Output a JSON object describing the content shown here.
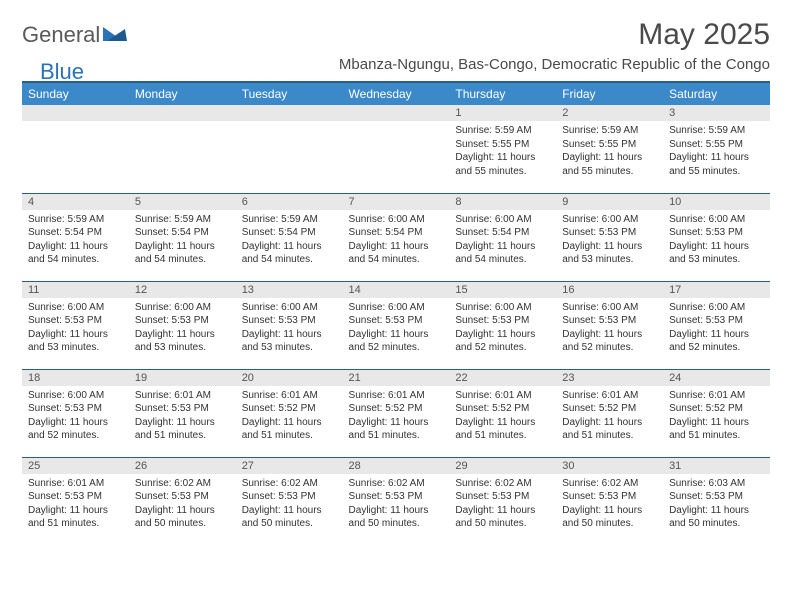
{
  "logo": {
    "part1": "General",
    "part2": "Blue"
  },
  "title": "May 2025",
  "location": "Mbanza-Ngungu, Bas-Congo, Democratic Republic of the Congo",
  "colors": {
    "header_bg": "#3b89c9",
    "header_text": "#ffffff",
    "row_divider": "#2a5d8a",
    "daynum_bg": "#e8e8e8",
    "logo_gray": "#5a5a5a",
    "logo_blue": "#2a73b8",
    "text": "#333333"
  },
  "weekdays": [
    "Sunday",
    "Monday",
    "Tuesday",
    "Wednesday",
    "Thursday",
    "Friday",
    "Saturday"
  ],
  "weeks": [
    [
      {
        "day": "",
        "lines": []
      },
      {
        "day": "",
        "lines": []
      },
      {
        "day": "",
        "lines": []
      },
      {
        "day": "",
        "lines": []
      },
      {
        "day": "1",
        "lines": [
          "Sunrise: 5:59 AM",
          "Sunset: 5:55 PM",
          "Daylight: 11 hours and 55 minutes."
        ]
      },
      {
        "day": "2",
        "lines": [
          "Sunrise: 5:59 AM",
          "Sunset: 5:55 PM",
          "Daylight: 11 hours and 55 minutes."
        ]
      },
      {
        "day": "3",
        "lines": [
          "Sunrise: 5:59 AM",
          "Sunset: 5:55 PM",
          "Daylight: 11 hours and 55 minutes."
        ]
      }
    ],
    [
      {
        "day": "4",
        "lines": [
          "Sunrise: 5:59 AM",
          "Sunset: 5:54 PM",
          "Daylight: 11 hours and 54 minutes."
        ]
      },
      {
        "day": "5",
        "lines": [
          "Sunrise: 5:59 AM",
          "Sunset: 5:54 PM",
          "Daylight: 11 hours and 54 minutes."
        ]
      },
      {
        "day": "6",
        "lines": [
          "Sunrise: 5:59 AM",
          "Sunset: 5:54 PM",
          "Daylight: 11 hours and 54 minutes."
        ]
      },
      {
        "day": "7",
        "lines": [
          "Sunrise: 6:00 AM",
          "Sunset: 5:54 PM",
          "Daylight: 11 hours and 54 minutes."
        ]
      },
      {
        "day": "8",
        "lines": [
          "Sunrise: 6:00 AM",
          "Sunset: 5:54 PM",
          "Daylight: 11 hours and 54 minutes."
        ]
      },
      {
        "day": "9",
        "lines": [
          "Sunrise: 6:00 AM",
          "Sunset: 5:53 PM",
          "Daylight: 11 hours and 53 minutes."
        ]
      },
      {
        "day": "10",
        "lines": [
          "Sunrise: 6:00 AM",
          "Sunset: 5:53 PM",
          "Daylight: 11 hours and 53 minutes."
        ]
      }
    ],
    [
      {
        "day": "11",
        "lines": [
          "Sunrise: 6:00 AM",
          "Sunset: 5:53 PM",
          "Daylight: 11 hours and 53 minutes."
        ]
      },
      {
        "day": "12",
        "lines": [
          "Sunrise: 6:00 AM",
          "Sunset: 5:53 PM",
          "Daylight: 11 hours and 53 minutes."
        ]
      },
      {
        "day": "13",
        "lines": [
          "Sunrise: 6:00 AM",
          "Sunset: 5:53 PM",
          "Daylight: 11 hours and 53 minutes."
        ]
      },
      {
        "day": "14",
        "lines": [
          "Sunrise: 6:00 AM",
          "Sunset: 5:53 PM",
          "Daylight: 11 hours and 52 minutes."
        ]
      },
      {
        "day": "15",
        "lines": [
          "Sunrise: 6:00 AM",
          "Sunset: 5:53 PM",
          "Daylight: 11 hours and 52 minutes."
        ]
      },
      {
        "day": "16",
        "lines": [
          "Sunrise: 6:00 AM",
          "Sunset: 5:53 PM",
          "Daylight: 11 hours and 52 minutes."
        ]
      },
      {
        "day": "17",
        "lines": [
          "Sunrise: 6:00 AM",
          "Sunset: 5:53 PM",
          "Daylight: 11 hours and 52 minutes."
        ]
      }
    ],
    [
      {
        "day": "18",
        "lines": [
          "Sunrise: 6:00 AM",
          "Sunset: 5:53 PM",
          "Daylight: 11 hours and 52 minutes."
        ]
      },
      {
        "day": "19",
        "lines": [
          "Sunrise: 6:01 AM",
          "Sunset: 5:53 PM",
          "Daylight: 11 hours and 51 minutes."
        ]
      },
      {
        "day": "20",
        "lines": [
          "Sunrise: 6:01 AM",
          "Sunset: 5:52 PM",
          "Daylight: 11 hours and 51 minutes."
        ]
      },
      {
        "day": "21",
        "lines": [
          "Sunrise: 6:01 AM",
          "Sunset: 5:52 PM",
          "Daylight: 11 hours and 51 minutes."
        ]
      },
      {
        "day": "22",
        "lines": [
          "Sunrise: 6:01 AM",
          "Sunset: 5:52 PM",
          "Daylight: 11 hours and 51 minutes."
        ]
      },
      {
        "day": "23",
        "lines": [
          "Sunrise: 6:01 AM",
          "Sunset: 5:52 PM",
          "Daylight: 11 hours and 51 minutes."
        ]
      },
      {
        "day": "24",
        "lines": [
          "Sunrise: 6:01 AM",
          "Sunset: 5:52 PM",
          "Daylight: 11 hours and 51 minutes."
        ]
      }
    ],
    [
      {
        "day": "25",
        "lines": [
          "Sunrise: 6:01 AM",
          "Sunset: 5:53 PM",
          "Daylight: 11 hours and 51 minutes."
        ]
      },
      {
        "day": "26",
        "lines": [
          "Sunrise: 6:02 AM",
          "Sunset: 5:53 PM",
          "Daylight: 11 hours and 50 minutes."
        ]
      },
      {
        "day": "27",
        "lines": [
          "Sunrise: 6:02 AM",
          "Sunset: 5:53 PM",
          "Daylight: 11 hours and 50 minutes."
        ]
      },
      {
        "day": "28",
        "lines": [
          "Sunrise: 6:02 AM",
          "Sunset: 5:53 PM",
          "Daylight: 11 hours and 50 minutes."
        ]
      },
      {
        "day": "29",
        "lines": [
          "Sunrise: 6:02 AM",
          "Sunset: 5:53 PM",
          "Daylight: 11 hours and 50 minutes."
        ]
      },
      {
        "day": "30",
        "lines": [
          "Sunrise: 6:02 AM",
          "Sunset: 5:53 PM",
          "Daylight: 11 hours and 50 minutes."
        ]
      },
      {
        "day": "31",
        "lines": [
          "Sunrise: 6:03 AM",
          "Sunset: 5:53 PM",
          "Daylight: 11 hours and 50 minutes."
        ]
      }
    ]
  ]
}
